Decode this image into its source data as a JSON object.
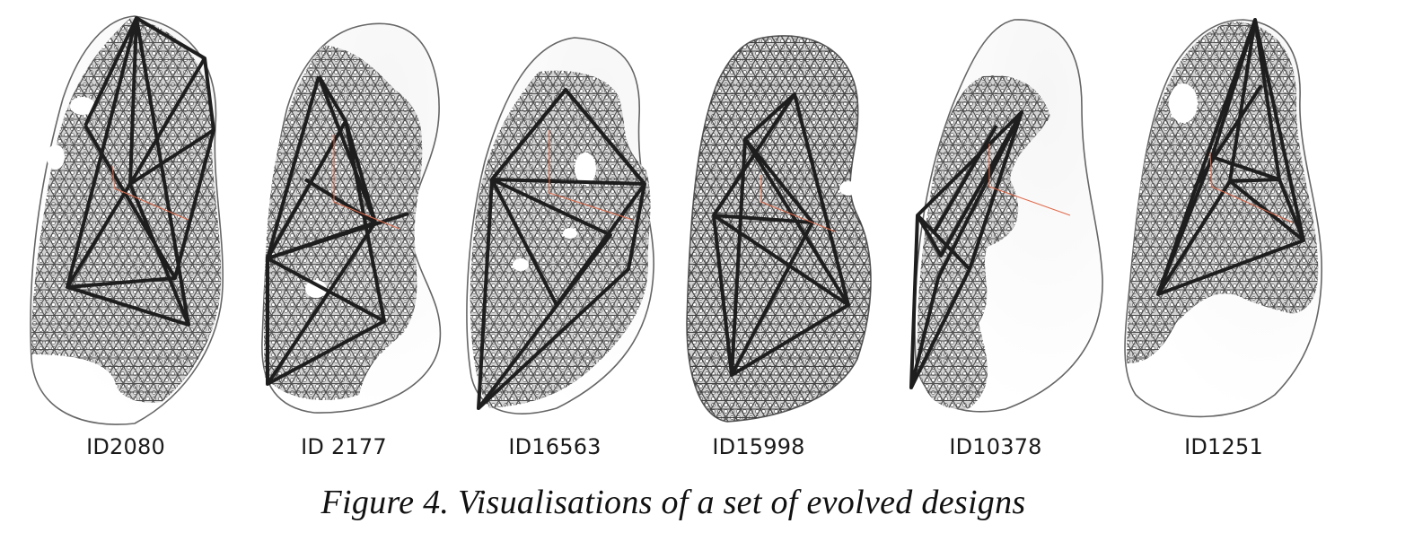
{
  "figure": {
    "caption": "Figure 4. Visualisations of a set of evolved designs",
    "designs": [
      {
        "id": "ID2080"
      },
      {
        "id": "ID 2177"
      },
      {
        "id": "ID16563"
      },
      {
        "id": "ID15998"
      },
      {
        "id": "ID10378"
      },
      {
        "id": "ID1251"
      }
    ],
    "colors": {
      "outline": "#666666",
      "mesh_fill": "#bdbdbd",
      "mesh_line": "#444444",
      "strut": "#1e1e1e",
      "axis": "#e06a4a",
      "shading": "#f1f1f1"
    }
  }
}
